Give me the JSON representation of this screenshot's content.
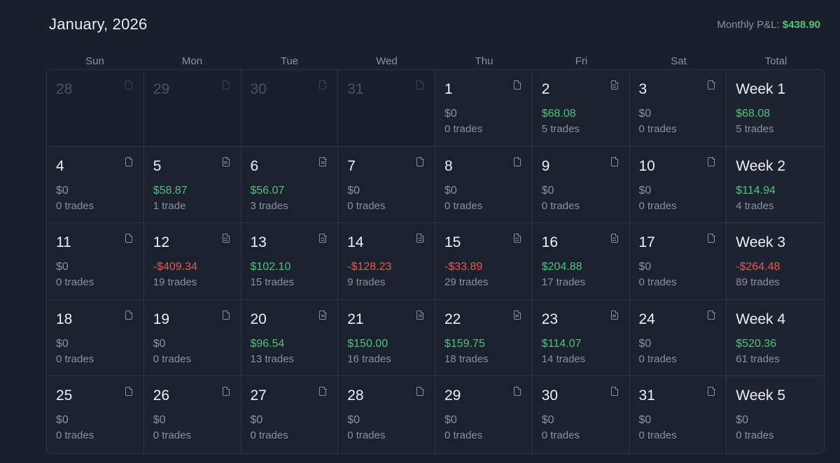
{
  "header": {
    "title": "January, 2026",
    "monthly_label": "Monthly P&L:",
    "monthly_value": "$438.90"
  },
  "weekday_headers": [
    "Sun",
    "Mon",
    "Tue",
    "Wed",
    "Thu",
    "Fri",
    "Sat",
    "Total"
  ],
  "weeks": [
    {
      "days": [
        {
          "day": "28",
          "prev": true
        },
        {
          "day": "29",
          "prev": true
        },
        {
          "day": "30",
          "prev": true
        },
        {
          "day": "31",
          "prev": true
        },
        {
          "day": "1",
          "pl": "$0",
          "trades": "0 trades",
          "sign": "zero",
          "note": false
        },
        {
          "day": "2",
          "pl": "$68.08",
          "trades": "5 trades",
          "sign": "pos",
          "note": true
        },
        {
          "day": "3",
          "pl": "$0",
          "trades": "0 trades",
          "sign": "zero",
          "note": false
        }
      ],
      "total": {
        "label": "Week 1",
        "pl": "$68.08",
        "trades": "5 trades",
        "sign": "pos"
      }
    },
    {
      "days": [
        {
          "day": "4",
          "pl": "$0",
          "trades": "0 trades",
          "sign": "zero",
          "note": false
        },
        {
          "day": "5",
          "pl": "$58.87",
          "trades": "1 trade",
          "sign": "pos",
          "note": true
        },
        {
          "day": "6",
          "pl": "$56.07",
          "trades": "3 trades",
          "sign": "pos",
          "note": true
        },
        {
          "day": "7",
          "pl": "$0",
          "trades": "0 trades",
          "sign": "zero",
          "note": false
        },
        {
          "day": "8",
          "pl": "$0",
          "trades": "0 trades",
          "sign": "zero",
          "note": false
        },
        {
          "day": "9",
          "pl": "$0",
          "trades": "0 trades",
          "sign": "zero",
          "note": false
        },
        {
          "day": "10",
          "pl": "$0",
          "trades": "0 trades",
          "sign": "zero",
          "note": false
        }
      ],
      "total": {
        "label": "Week 2",
        "pl": "$114.94",
        "trades": "4 trades",
        "sign": "pos"
      }
    },
    {
      "days": [
        {
          "day": "11",
          "pl": "$0",
          "trades": "0 trades",
          "sign": "zero",
          "note": false
        },
        {
          "day": "12",
          "pl": "-$409.34",
          "trades": "19 trades",
          "sign": "neg",
          "note": true
        },
        {
          "day": "13",
          "pl": "$102.10",
          "trades": "15 trades",
          "sign": "pos",
          "note": true
        },
        {
          "day": "14",
          "pl": "-$128.23",
          "trades": "9 trades",
          "sign": "neg",
          "note": true
        },
        {
          "day": "15",
          "pl": "-$33.89",
          "trades": "29 trades",
          "sign": "neg",
          "note": true
        },
        {
          "day": "16",
          "pl": "$204.88",
          "trades": "17 trades",
          "sign": "pos",
          "note": true
        },
        {
          "day": "17",
          "pl": "$0",
          "trades": "0 trades",
          "sign": "zero",
          "note": false
        }
      ],
      "total": {
        "label": "Week 3",
        "pl": "-$264.48",
        "trades": "89 trades",
        "sign": "neg"
      }
    },
    {
      "days": [
        {
          "day": "18",
          "pl": "$0",
          "trades": "0 trades",
          "sign": "zero",
          "note": false
        },
        {
          "day": "19",
          "pl": "$0",
          "trades": "0 trades",
          "sign": "zero",
          "note": false
        },
        {
          "day": "20",
          "pl": "$96.54",
          "trades": "13 trades",
          "sign": "pos",
          "note": true
        },
        {
          "day": "21",
          "pl": "$150.00",
          "trades": "16 trades",
          "sign": "pos",
          "note": true
        },
        {
          "day": "22",
          "pl": "$159.75",
          "trades": "18 trades",
          "sign": "pos",
          "note": true
        },
        {
          "day": "23",
          "pl": "$114.07",
          "trades": "14 trades",
          "sign": "pos",
          "note": true
        },
        {
          "day": "24",
          "pl": "$0",
          "trades": "0 trades",
          "sign": "zero",
          "note": false
        }
      ],
      "total": {
        "label": "Week 4",
        "pl": "$520.36",
        "trades": "61 trades",
        "sign": "pos"
      }
    },
    {
      "days": [
        {
          "day": "25",
          "pl": "$0",
          "trades": "0 trades",
          "sign": "zero",
          "note": false
        },
        {
          "day": "26",
          "pl": "$0",
          "trades": "0 trades",
          "sign": "zero",
          "note": false
        },
        {
          "day": "27",
          "pl": "$0",
          "trades": "0 trades",
          "sign": "zero",
          "note": false
        },
        {
          "day": "28",
          "pl": "$0",
          "trades": "0 trades",
          "sign": "zero",
          "note": false
        },
        {
          "day": "29",
          "pl": "$0",
          "trades": "0 trades",
          "sign": "zero",
          "note": false
        },
        {
          "day": "30",
          "pl": "$0",
          "trades": "0 trades",
          "sign": "zero",
          "note": false
        },
        {
          "day": "31",
          "pl": "$0",
          "trades": "0 trades",
          "sign": "zero",
          "note": false
        }
      ],
      "total": {
        "label": "Week 5",
        "pl": "$0",
        "trades": "0 trades",
        "sign": "zero"
      }
    }
  ],
  "colors": {
    "positive": "#4fc37a",
    "negative": "#e55b4d",
    "muted": "#8a91a0",
    "background": "#1a1f2c"
  },
  "icons": {
    "note_empty": "note-icon",
    "note_filled": "note-filled-icon"
  }
}
